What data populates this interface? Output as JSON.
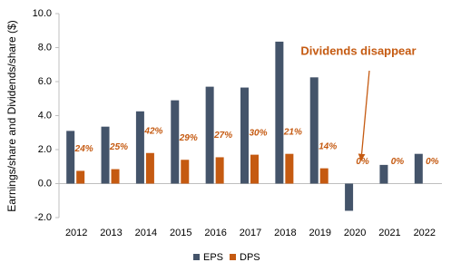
{
  "chart_data": {
    "type": "bar",
    "y_label": "Earnings/share and Dividends/share ($)",
    "categories": [
      "2012",
      "2013",
      "2014",
      "2015",
      "2016",
      "2017",
      "2018",
      "2019",
      "2020",
      "2021",
      "2022"
    ],
    "series": [
      {
        "name": "EPS",
        "color": "#44546a",
        "values": [
          3.1,
          3.35,
          4.25,
          4.9,
          5.7,
          5.65,
          8.35,
          6.25,
          -1.6,
          1.1,
          1.75
        ]
      },
      {
        "name": "DPS",
        "color": "#c55a11",
        "values": [
          0.75,
          0.85,
          1.8,
          1.4,
          1.55,
          1.7,
          1.75,
          0.9,
          0,
          0,
          0
        ],
        "payout_labels": [
          "24%",
          "25%",
          "42%",
          "29%",
          "27%",
          "30%",
          "21%",
          "14%",
          "0%",
          "0%",
          "0%"
        ]
      }
    ],
    "annotation": "Dividends disappear",
    "ylim": [
      -2,
      10
    ],
    "yticks": [
      {
        "value": -2,
        "label": "-2.0"
      },
      {
        "value": 0,
        "label": "0.0"
      },
      {
        "value": 2,
        "label": "2.0"
      },
      {
        "value": 4,
        "label": "4.0"
      },
      {
        "value": 6,
        "label": "6.0"
      },
      {
        "value": 8,
        "label": "8.0"
      },
      {
        "value": 10,
        "label": "10.0"
      }
    ],
    "legend": "bottom"
  }
}
